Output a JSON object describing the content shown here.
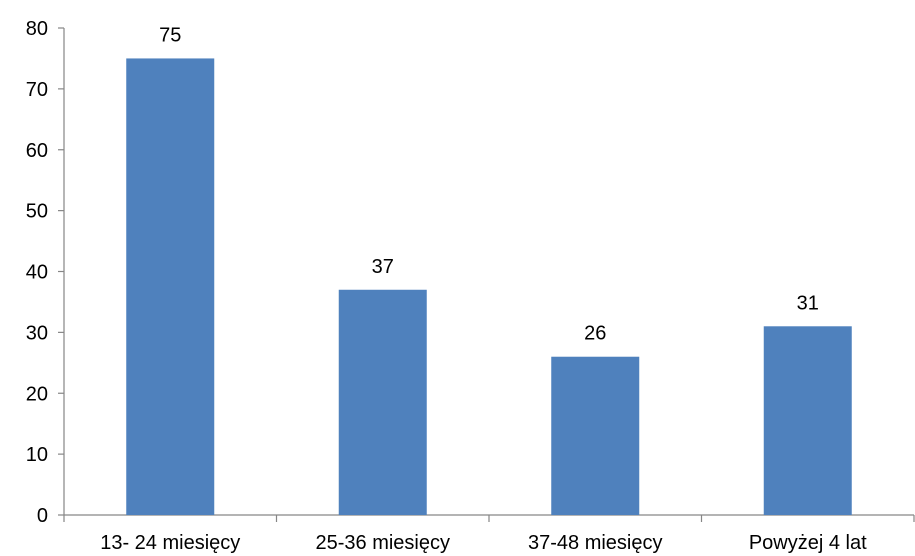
{
  "chart_data": {
    "type": "bar",
    "categories": [
      "13- 24 miesięcy",
      "25-36 miesięcy",
      "37-48 miesięcy",
      "Powyżej 4 lat"
    ],
    "values": [
      75,
      37,
      26,
      31
    ],
    "ylim": [
      0,
      80
    ],
    "yticks": [
      0,
      10,
      20,
      30,
      40,
      50,
      60,
      70,
      80
    ],
    "grid": false,
    "data_labels": true,
    "bar_color": "#4F81BD"
  }
}
